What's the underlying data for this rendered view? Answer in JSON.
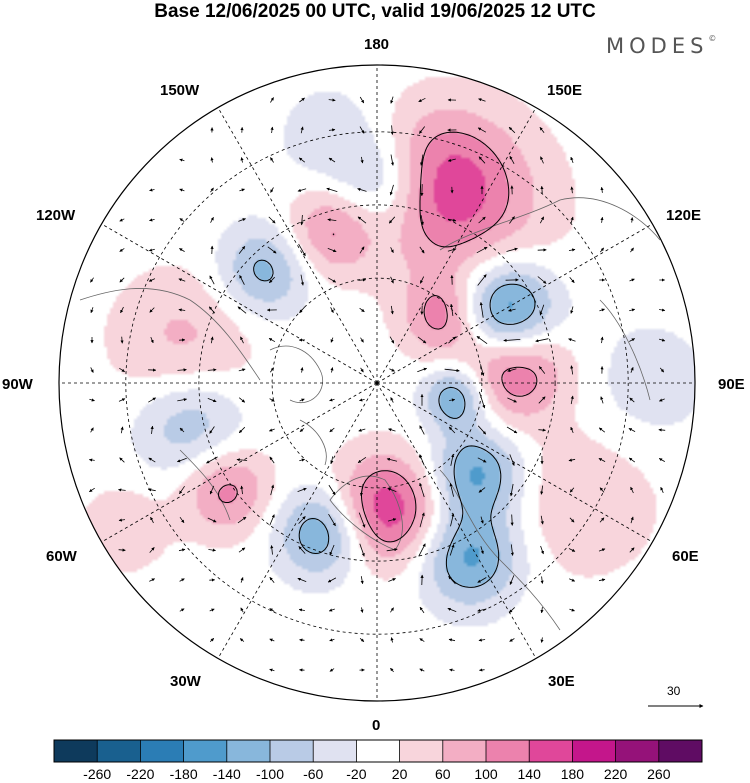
{
  "title": "Base 12/06/2025 00 UTC, valid 19/06/2025 12 UTC",
  "brand": "MODES",
  "brand_mark": "©",
  "longitude_labels": {
    "n180": "180",
    "e150": "150E",
    "e120": "120E",
    "e90": "90E",
    "e60": "60E",
    "e30": "30E",
    "z0": "0",
    "w30": "30W",
    "w60": "60W",
    "w90": "90W",
    "w120": "120W",
    "w150": "150W"
  },
  "wind_scale": {
    "label": "30"
  },
  "colorbar": {
    "ticks": [
      "-260",
      "-220",
      "-180",
      "-140",
      "-100",
      "-60",
      "-20",
      "20",
      "60",
      "100",
      "140",
      "180",
      "220",
      "260"
    ],
    "colors": [
      "#0e3a5c",
      "#19608f",
      "#2b7db5",
      "#4f9bcc",
      "#88b7dc",
      "#b9cbe6",
      "#e0e2f1",
      "#ffffff",
      "#f8d5dc",
      "#f3aec4",
      "#ec82ad",
      "#e0479a",
      "#c4168b",
      "#951279",
      "#5f0c63"
    ]
  },
  "anomaly_fields": [
    {
      "lon": 178,
      "r": 0.62,
      "v": -110,
      "s": 0.11
    },
    {
      "lon": 163,
      "r": 0.66,
      "v": 135,
      "s": 0.16
    },
    {
      "lon": 150,
      "r": 0.62,
      "v": 60,
      "s": 0.2
    },
    {
      "lon": 135,
      "r": 0.3,
      "v": 120,
      "s": 0.09
    },
    {
      "lon": 118,
      "r": 0.46,
      "v": -230,
      "s": 0.11
    },
    {
      "lon": 98,
      "r": 0.43,
      "v": 170,
      "s": 0.12
    },
    {
      "lon": 80,
      "r": 0.25,
      "v": -150,
      "s": 0.07
    },
    {
      "lon": 48,
      "r": 0.42,
      "v": -150,
      "s": 0.1
    },
    {
      "lon": 28,
      "r": 0.62,
      "v": -150,
      "s": 0.11
    },
    {
      "lon": 60,
      "r": 0.75,
      "v": 60,
      "s": 0.16
    },
    {
      "lon": 4,
      "r": 0.4,
      "v": 180,
      "s": 0.12
    },
    {
      "lon": -20,
      "r": 0.5,
      "v": -150,
      "s": 0.1
    },
    {
      "lon": -55,
      "r": 0.58,
      "v": 120,
      "s": 0.1
    },
    {
      "lon": -77,
      "r": 0.6,
      "v": -100,
      "s": 0.12
    },
    {
      "lon": -102,
      "r": 0.62,
      "v": 70,
      "s": 0.16
    },
    {
      "lon": -135,
      "r": 0.5,
      "v": -120,
      "s": 0.1
    },
    {
      "lon": -163,
      "r": 0.5,
      "v": 110,
      "s": 0.1
    },
    {
      "lon": -170,
      "r": 0.78,
      "v": -50,
      "s": 0.12
    },
    {
      "lon": -60,
      "r": 0.92,
      "v": 50,
      "s": 0.1
    },
    {
      "lon": 90,
      "r": 0.85,
      "v": -40,
      "s": 0.15
    }
  ]
}
